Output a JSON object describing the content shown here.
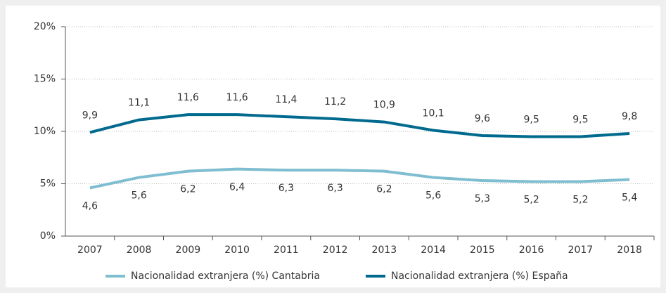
{
  "chart_data": {
    "type": "line",
    "categories": [
      "2007",
      "2008",
      "2009",
      "2010",
      "2011",
      "2012",
      "2013",
      "2014",
      "2015",
      "2016",
      "2017",
      "2018"
    ],
    "series": [
      {
        "name": "Nacionalidad extranjera (%) Cantabria",
        "color": "#7fbdd1",
        "values": [
          4.6,
          5.6,
          6.2,
          6.4,
          6.3,
          6.3,
          6.2,
          5.6,
          5.3,
          5.2,
          5.2,
          5.4
        ],
        "value_labels": [
          "4,6",
          "5,6",
          "6,2",
          "6,4",
          "6,3",
          "6,3",
          "6,2",
          "5,6",
          "5,3",
          "5,2",
          "5,2",
          "5,4"
        ]
      },
      {
        "name": "Nacionalidad extranjera (%) España",
        "color": "#006a8e",
        "values": [
          9.9,
          11.1,
          11.6,
          11.6,
          11.4,
          11.2,
          10.9,
          10.1,
          9.6,
          9.5,
          9.5,
          9.8
        ],
        "value_labels": [
          "9,9",
          "11,1",
          "11,6",
          "11,6",
          "11,4",
          "11,2",
          "10,9",
          "10,1",
          "9,6",
          "9,5",
          "9,5",
          "9,8"
        ]
      }
    ],
    "ylim": [
      0,
      20
    ],
    "yticks": [
      {
        "value": 0,
        "label": "0%"
      },
      {
        "value": 5,
        "label": "5%"
      },
      {
        "value": 10,
        "label": "10%"
      },
      {
        "value": 15,
        "label": "15%"
      },
      {
        "value": 20,
        "label": "20%"
      }
    ],
    "grid": true,
    "legend": "bottom"
  }
}
